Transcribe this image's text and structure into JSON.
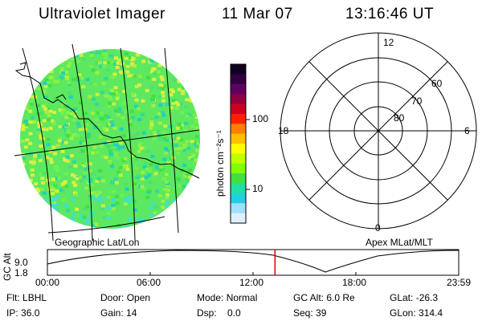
{
  "header": {
    "instrument": "Ultraviolet Imager",
    "date": "11 Mar 07",
    "time": "13:16:46 UT"
  },
  "colorbar": {
    "unit_label": "photon cm⁻²s⁻¹",
    "ticks": [
      "100",
      "10"
    ],
    "colors": [
      "#100020",
      "#300040",
      "#600060",
      "#900040",
      "#d00020",
      "#ff2000",
      "#ff8000",
      "#ffc000",
      "#ffff00",
      "#c0ff00",
      "#80ff00",
      "#40e040",
      "#20e0a0",
      "#20d0e0",
      "#a0e0ff",
      "#e0f0ff"
    ]
  },
  "left_panel": {
    "caption": "Geographic Lat/Lon"
  },
  "right_panel": {
    "caption": "Apex MLat/MLT",
    "mlt_labels": {
      "top": "12",
      "left": "18",
      "right": "6",
      "bottom": "0"
    },
    "lat_labels": [
      "60",
      "70",
      "80"
    ]
  },
  "altitude_plot": {
    "ylabel": "GC Alt",
    "yticks": [
      "9.0",
      "1.8"
    ],
    "xticks": [
      "00:00",
      "06:00",
      "12:00",
      "18:00",
      "23:59"
    ],
    "current_time_hours": 13.28
  },
  "status": {
    "row1": [
      {
        "key": "Flt:",
        "value": "LBHL"
      },
      {
        "key": "Door:",
        "value": "Open"
      },
      {
        "key": "Mode:",
        "value": "Normal"
      },
      {
        "key": "GC Alt:",
        "value": "6.0 Re"
      },
      {
        "key": "GLat:",
        "value": "-26.3"
      }
    ],
    "row2": [
      {
        "key": "IP:",
        "value": "36.0"
      },
      {
        "key": "Gain:",
        "value": "14"
      },
      {
        "key": "Dsp:",
        "value": "0.0"
      },
      {
        "key": "Seq:",
        "value": "39"
      },
      {
        "key": "GLon:",
        "value": "314.4"
      }
    ]
  }
}
